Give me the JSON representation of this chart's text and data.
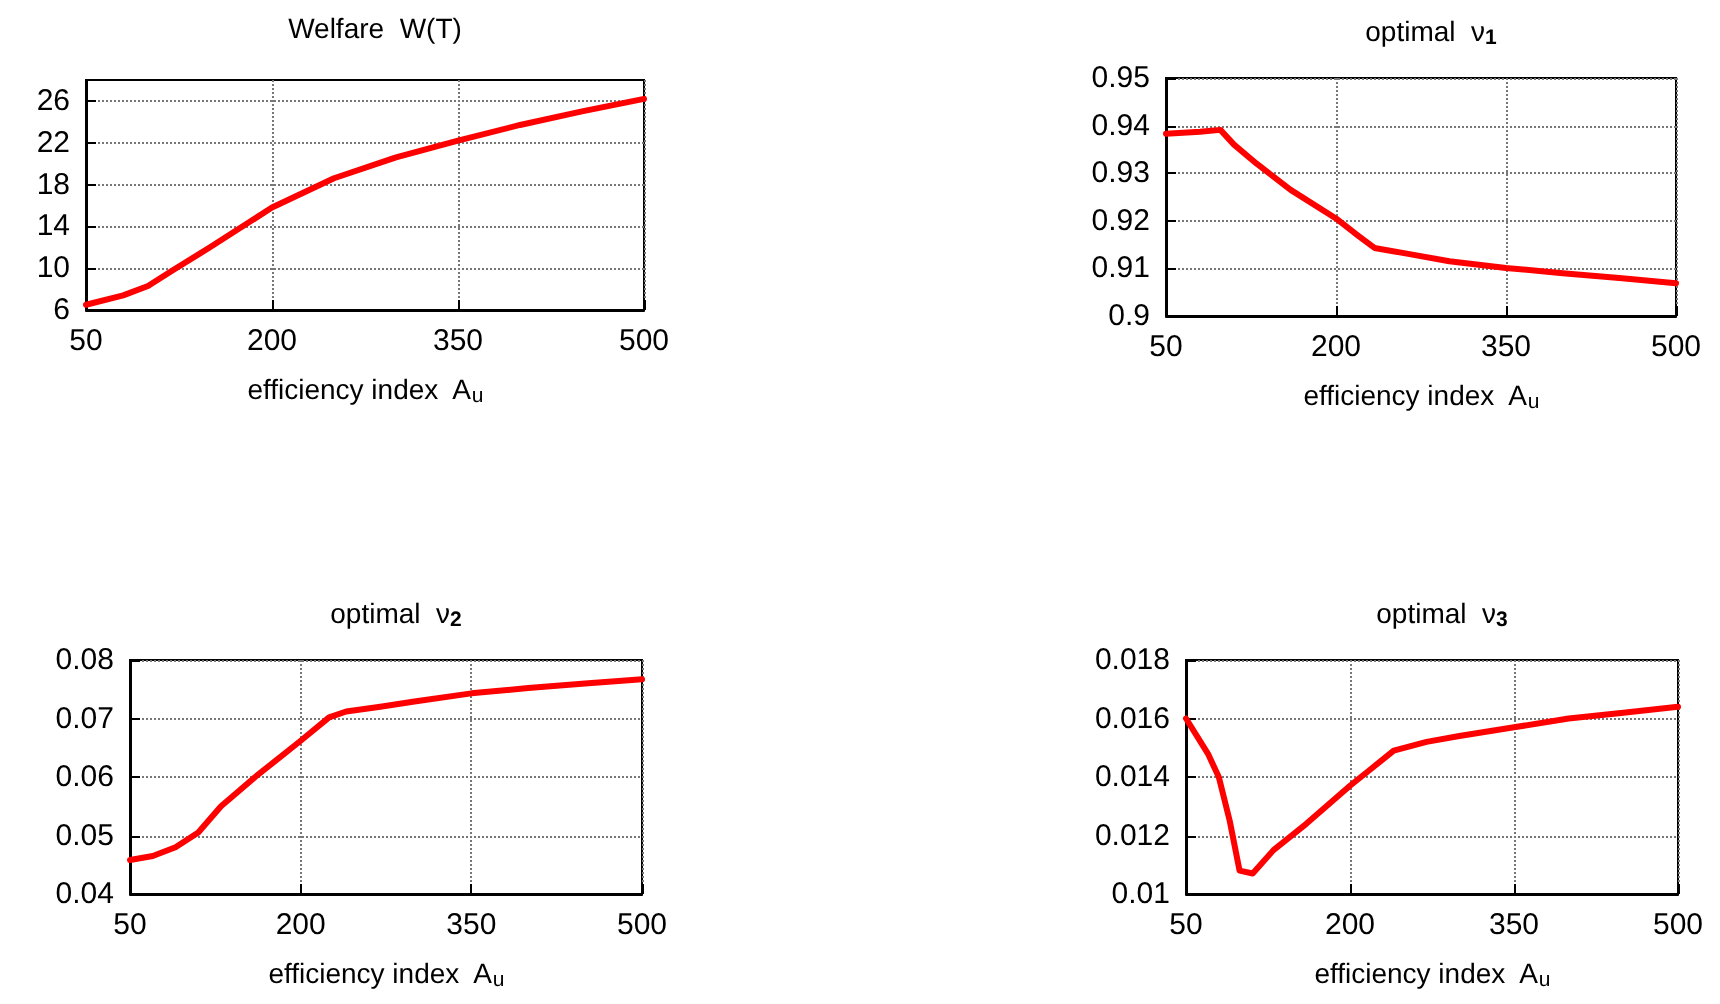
{
  "chart_data": [
    {
      "type": "line",
      "title": "Welfare  W(T)",
      "xlabel": "efficiency index  A$_{u}$",
      "xlim": [
        50,
        500
      ],
      "xticks": [
        50,
        200,
        350,
        500
      ],
      "ylim": [
        6,
        28
      ],
      "yticks": [
        6,
        10,
        14,
        18,
        22,
        26
      ],
      "grid": true,
      "marker": "none",
      "line_style": "solid",
      "series": [
        {
          "color": "#ff0000",
          "x": [
            50,
            80,
            100,
            120,
            150,
            200,
            250,
            300,
            350,
            400,
            450,
            500
          ],
          "values": [
            6.5,
            7.4,
            8.3,
            9.8,
            12,
            15.8,
            18.6,
            20.6,
            22.2,
            23.7,
            25,
            26.2
          ]
        }
      ]
    },
    {
      "type": "line",
      "title": "optimal  ν$_{1}$",
      "xlabel": "efficiency index  A$_{u}$",
      "xlim": [
        50,
        500
      ],
      "xticks": [
        50,
        200,
        350,
        500
      ],
      "ylim": [
        0.9,
        0.95
      ],
      "yticks": [
        0.9,
        0.91,
        0.92,
        0.93,
        0.94,
        0.95
      ],
      "grid": true,
      "marker": "none",
      "line_style": "solid",
      "series": [
        {
          "color": "#ff0000",
          "x": [
            50,
            80,
            98,
            110,
            130,
            160,
            200,
            220,
            234,
            260,
            300,
            350,
            400,
            450,
            500
          ],
          "values": [
            0.9383,
            0.9387,
            0.9391,
            0.936,
            0.932,
            0.9265,
            0.9205,
            0.9168,
            0.9143,
            0.9132,
            0.9115,
            0.9101,
            0.909,
            0.908,
            0.9069
          ]
        }
      ]
    },
    {
      "type": "line",
      "title": "optimal  ν$_{2}$",
      "xlabel": "efficiency index  A$_{u}$",
      "xlim": [
        50,
        500
      ],
      "xticks": [
        50,
        200,
        350,
        500
      ],
      "ylim": [
        0.04,
        0.08
      ],
      "yticks": [
        0.04,
        0.05,
        0.06,
        0.07,
        0.08
      ],
      "grid": true,
      "marker": "none",
      "line_style": "solid",
      "series": [
        {
          "color": "#ff0000",
          "x": [
            50,
            70,
            90,
            110,
            130,
            160,
            200,
            225,
            240,
            270,
            300,
            350,
            400,
            450,
            500
          ],
          "values": [
            0.0458,
            0.0465,
            0.048,
            0.0505,
            0.055,
            0.06,
            0.0662,
            0.0702,
            0.0712,
            0.072,
            0.0729,
            0.0743,
            0.0752,
            0.076,
            0.0767
          ]
        }
      ]
    },
    {
      "type": "line",
      "title": "optimal  ν$_{3}$",
      "xlabel": "efficiency index  A$_{u}$",
      "xlim": [
        50,
        500
      ],
      "xticks": [
        50,
        200,
        350,
        500
      ],
      "ylim": [
        0.01,
        0.018
      ],
      "yticks": [
        0.01,
        0.012,
        0.014,
        0.016,
        0.018
      ],
      "grid": true,
      "marker": "none",
      "line_style": "solid",
      "series": [
        {
          "color": "#ff0000",
          "x": [
            50,
            70,
            80,
            90,
            99,
            111,
            130,
            160,
            200,
            220,
            240,
            270,
            300,
            350,
            400,
            450,
            500
          ],
          "values": [
            0.016,
            0.0148,
            0.014,
            0.0125,
            0.0108,
            0.0107,
            0.0115,
            0.0124,
            0.0137,
            0.0143,
            0.0149,
            0.0152,
            0.0154,
            0.0157,
            0.016,
            0.0162,
            0.0164
          ]
        }
      ]
    }
  ]
}
